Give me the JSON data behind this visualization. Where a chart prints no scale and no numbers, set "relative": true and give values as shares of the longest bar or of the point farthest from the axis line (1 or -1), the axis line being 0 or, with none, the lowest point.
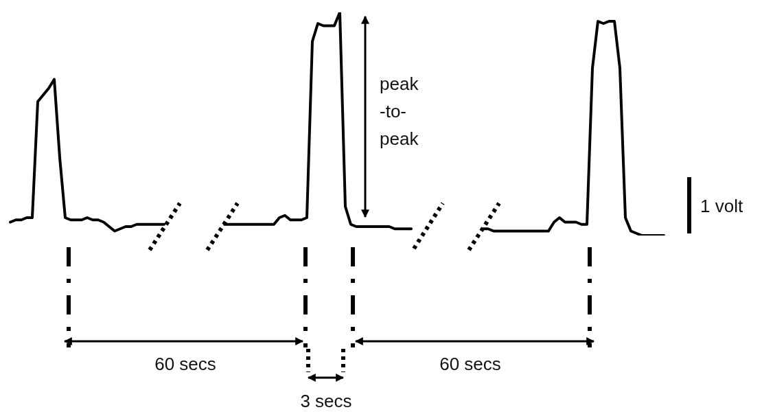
{
  "chart_data": {
    "type": "line",
    "relative": true,
    "tick_labels": false,
    "marker": "none",
    "line_style": "solid",
    "categories": [
      null,
      null,
      null,
      null,
      null,
      null,
      null,
      null,
      null,
      null,
      null,
      null,
      null,
      null,
      null,
      null,
      null,
      null,
      null,
      null,
      null,
      null,
      null,
      null,
      null,
      null,
      null,
      null,
      null,
      null,
      null,
      null,
      null,
      null,
      null,
      null,
      null,
      null,
      null,
      null,
      null,
      null,
      null,
      null,
      null,
      null,
      null,
      null,
      null,
      null,
      null,
      null,
      null,
      null,
      null,
      null,
      null,
      null,
      null,
      null,
      null,
      null,
      null,
      null,
      null,
      null,
      null,
      null,
      null,
      null,
      null,
      null,
      null,
      null,
      null,
      null,
      null,
      null,
      null,
      null,
      null,
      null,
      null,
      null,
      null,
      null,
      null,
      null,
      null,
      null,
      null,
      null,
      null,
      null,
      null,
      null,
      null,
      null,
      null,
      null,
      null,
      null,
      null,
      null,
      null,
      null,
      null,
      null,
      null,
      null,
      null,
      null,
      null,
      null,
      null,
      null,
      null,
      null,
      null,
      null
    ],
    "series": [
      {
        "color": "#000000",
        "values": [
          0.06,
          0.07,
          0.07,
          0.08,
          0.08,
          0.6,
          0.63,
          0.66,
          0.7,
          0.35,
          0.08,
          0.07,
          0.07,
          0.07,
          0.08,
          0.07,
          0.07,
          0.06,
          0.04,
          0.02,
          0.03,
          0.04,
          0.04,
          0.05,
          0.05,
          0.05,
          0.05,
          0.05,
          0.05,
          null,
          null,
          null,
          null,
          null,
          null,
          null,
          null,
          null,
          null,
          null,
          null,
          null,
          null,
          null,
          null,
          null,
          null,
          null,
          null,
          null,
          null,
          null,
          null,
          null,
          null,
          null,
          null,
          null,
          null,
          null,
          null,
          null,
          null,
          null,
          null,
          null,
          null,
          null,
          null,
          null,
          null,
          null,
          null,
          null,
          null,
          null,
          null,
          null,
          null,
          null,
          null,
          null,
          null,
          null,
          null,
          null,
          null,
          null,
          null,
          null,
          null,
          null,
          null,
          null,
          null,
          null,
          null,
          null,
          null,
          null,
          null,
          null,
          null,
          null,
          null,
          null,
          null,
          null,
          null,
          null,
          null,
          null,
          null,
          null,
          null,
          null,
          null,
          null,
          null,
          null
        ]
      },
      {
        "color": "#000000",
        "values": [
          null,
          null,
          null,
          null,
          null,
          null,
          null,
          null,
          null,
          null,
          null,
          null,
          null,
          null,
          null,
          null,
          null,
          null,
          null,
          null,
          null,
          null,
          null,
          null,
          null,
          null,
          null,
          null,
          null,
          null,
          null,
          null,
          null,
          null,
          null,
          null,
          null,
          null,
          null,
          0.05,
          0.05,
          0.05,
          0.05,
          0.05,
          0.05,
          0.05,
          0.05,
          0.05,
          0.05,
          0.08,
          0.09,
          0.07,
          0.07,
          0.07,
          0.08,
          0.87,
          0.95,
          0.94,
          0.94,
          0.94,
          1.0,
          0.13,
          0.05,
          0.04,
          0.04,
          0.04,
          0.04,
          0.04,
          0.04,
          0.04,
          0.03,
          0.03,
          0.03,
          0.03,
          null,
          null,
          null,
          null,
          null,
          null,
          null,
          null,
          null,
          null,
          null,
          null,
          null,
          null,
          null,
          null,
          null,
          null,
          null,
          null,
          null,
          null,
          null,
          null,
          null,
          null,
          null,
          null,
          null,
          null,
          null,
          null,
          null,
          null,
          null,
          null,
          null,
          null,
          null,
          null,
          null,
          null,
          null,
          null,
          null,
          null
        ]
      },
      {
        "color": "#000000",
        "values": [
          null,
          null,
          null,
          null,
          null,
          null,
          null,
          null,
          null,
          null,
          null,
          null,
          null,
          null,
          null,
          null,
          null,
          null,
          null,
          null,
          null,
          null,
          null,
          null,
          null,
          null,
          null,
          null,
          null,
          null,
          null,
          null,
          null,
          null,
          null,
          null,
          null,
          null,
          null,
          null,
          null,
          null,
          null,
          null,
          null,
          null,
          null,
          null,
          null,
          null,
          null,
          null,
          null,
          null,
          null,
          null,
          null,
          null,
          null,
          null,
          null,
          null,
          null,
          null,
          null,
          null,
          null,
          null,
          null,
          null,
          null,
          null,
          null,
          null,
          null,
          null,
          null,
          null,
          null,
          null,
          null,
          null,
          null,
          null,
          null,
          null,
          0.03,
          0.03,
          0.02,
          0.02,
          0.02,
          0.02,
          0.02,
          0.02,
          0.02,
          0.02,
          0.02,
          0.02,
          0.02,
          0.06,
          0.08,
          0.06,
          0.06,
          0.06,
          0.05,
          0.05,
          0.75,
          0.96,
          0.95,
          0.96,
          0.96,
          0.75,
          0.08,
          0.02,
          0.01,
          0,
          0,
          0,
          0,
          0
        ]
      }
    ],
    "annotations": [
      "peak -to- peak",
      "1 volt",
      "60 secs",
      "3 secs",
      "60 secs"
    ]
  }
}
